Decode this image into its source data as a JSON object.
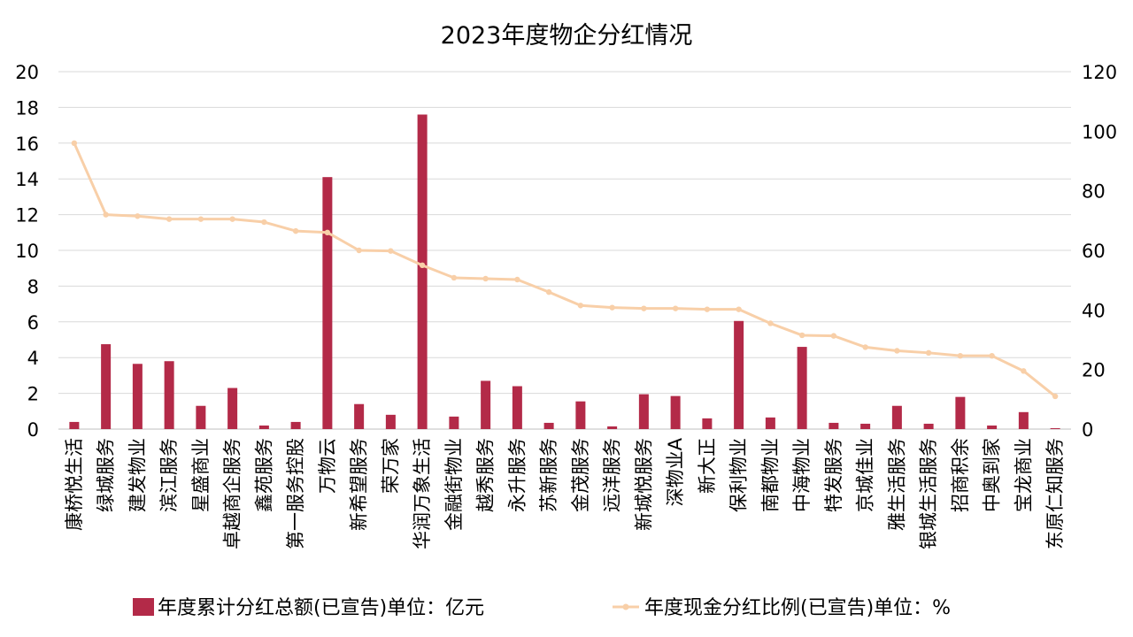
{
  "chart_data": {
    "type": "bar",
    "title": "2023年度物企分红情况",
    "categories": [
      "康桥悦生活",
      "绿城服务",
      "建发物业",
      "滨江服务",
      "星盛商业",
      "卓越商企服务",
      "鑫苑服务",
      "第一服务控股",
      "万物云",
      "新希望服务",
      "荣万家",
      "华润万象生活",
      "金融街物业",
      "越秀服务",
      "永升服务",
      "苏新服务",
      "金茂服务",
      "远洋服务",
      "新城悦服务",
      "深物业A",
      "新大正",
      "保利物业",
      "南都物业",
      "中海物业",
      "特发服务",
      "京城佳业",
      "雅生活服务",
      "银城生活服务",
      "招商积余",
      "中奥到家",
      "宝龙商业",
      "东原仁知服务"
    ],
    "series": [
      {
        "name": "年度累计分红总额(已宣告)单位：亿元",
        "type": "bar",
        "axis": "left",
        "color": "#b32a48",
        "values": [
          0.4,
          4.75,
          3.65,
          3.8,
          1.3,
          2.3,
          0.2,
          0.4,
          14.1,
          1.4,
          0.8,
          17.6,
          0.7,
          2.7,
          2.4,
          0.35,
          1.55,
          0.15,
          1.95,
          1.85,
          0.6,
          6.05,
          0.65,
          4.6,
          0.35,
          0.3,
          1.3,
          0.3,
          1.8,
          0.2,
          0.95,
          0.05
        ]
      },
      {
        "name": "年度现金分红比例(已宣告)单位：%",
        "type": "line",
        "axis": "right",
        "color": "#f8cfa8",
        "values": [
          96,
          72,
          71.5,
          70.5,
          70.5,
          70.5,
          69.5,
          66.5,
          66,
          60,
          59.8,
          55,
          50.8,
          50.5,
          50.2,
          46,
          41.5,
          40.8,
          40.5,
          40.5,
          40.2,
          40.2,
          35.5,
          31.5,
          31.3,
          27.5,
          26.3,
          25.6,
          24.6,
          24.6,
          19.5,
          11
        ]
      }
    ],
    "y_left": {
      "min": 0,
      "max": 20,
      "ticks": [
        0,
        2,
        4,
        6,
        8,
        10,
        12,
        14,
        16,
        18,
        20
      ]
    },
    "y_right": {
      "min": 0,
      "max": 120,
      "ticks": [
        0,
        20,
        40,
        60,
        80,
        100,
        120
      ]
    },
    "grid": true,
    "legend_position": "bottom"
  }
}
